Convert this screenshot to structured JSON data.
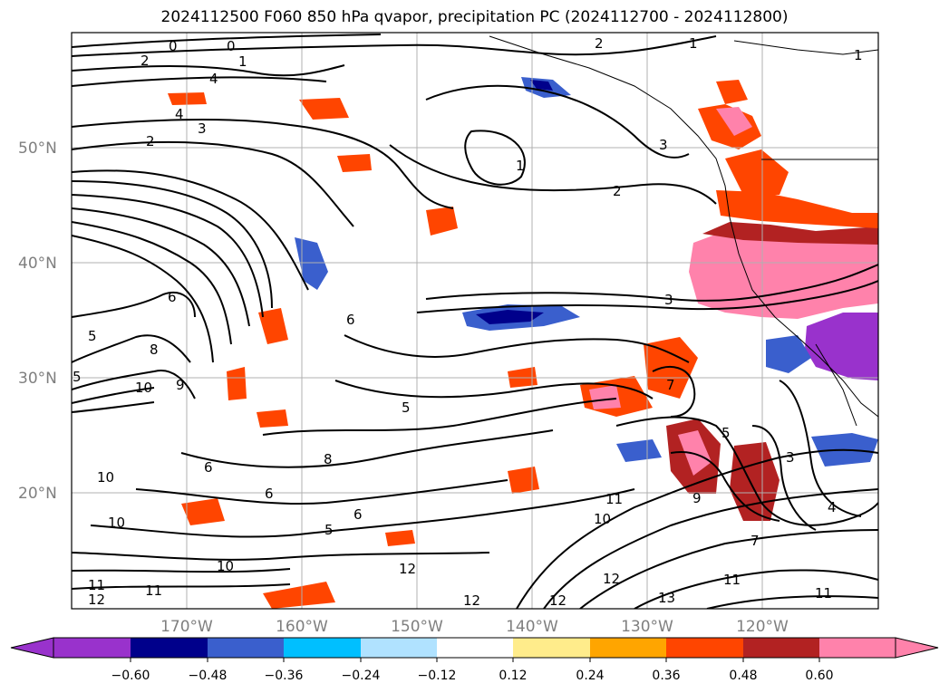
{
  "title": "2024112500 F060 850 hPa qvapor, precipitation PC (2024112700 - 2024112800)",
  "map": {
    "lat_labels": [
      "50°N",
      "40°N",
      "30°N",
      "20°N"
    ],
    "lon_labels": [
      "170°W",
      "160°W",
      "150°W",
      "140°W",
      "130°W",
      "120°W"
    ],
    "contour_labels": [
      "0",
      "0",
      "1",
      "2",
      "4",
      "4",
      "3",
      "2",
      "2",
      "1",
      "2",
      "1",
      "1",
      "3",
      "6",
      "5",
      "8",
      "5",
      "10",
      "9",
      "6",
      "5",
      "8",
      "6",
      "10",
      "6",
      "10",
      "6",
      "5",
      "12",
      "11",
      "11",
      "12",
      "10",
      "12",
      "12",
      "13",
      "12",
      "11",
      "9",
      "7",
      "11",
      "10",
      "11",
      "5",
      "3",
      "4",
      "7",
      "3"
    ]
  },
  "colorbar": {
    "ticks": [
      "−0.60",
      "−0.48",
      "−0.36",
      "−0.24",
      "−0.12",
      "0.12",
      "0.24",
      "0.36",
      "0.48",
      "0.60"
    ],
    "colors": [
      "#9932cc",
      "#00008b",
      "#3a5fcd",
      "#00bfff",
      "#b0e2ff",
      "#ffffff",
      "#ffec8b",
      "#ffa500",
      "#ff4500",
      "#b22222",
      "#ff82ab",
      "#ff82ab"
    ]
  }
}
